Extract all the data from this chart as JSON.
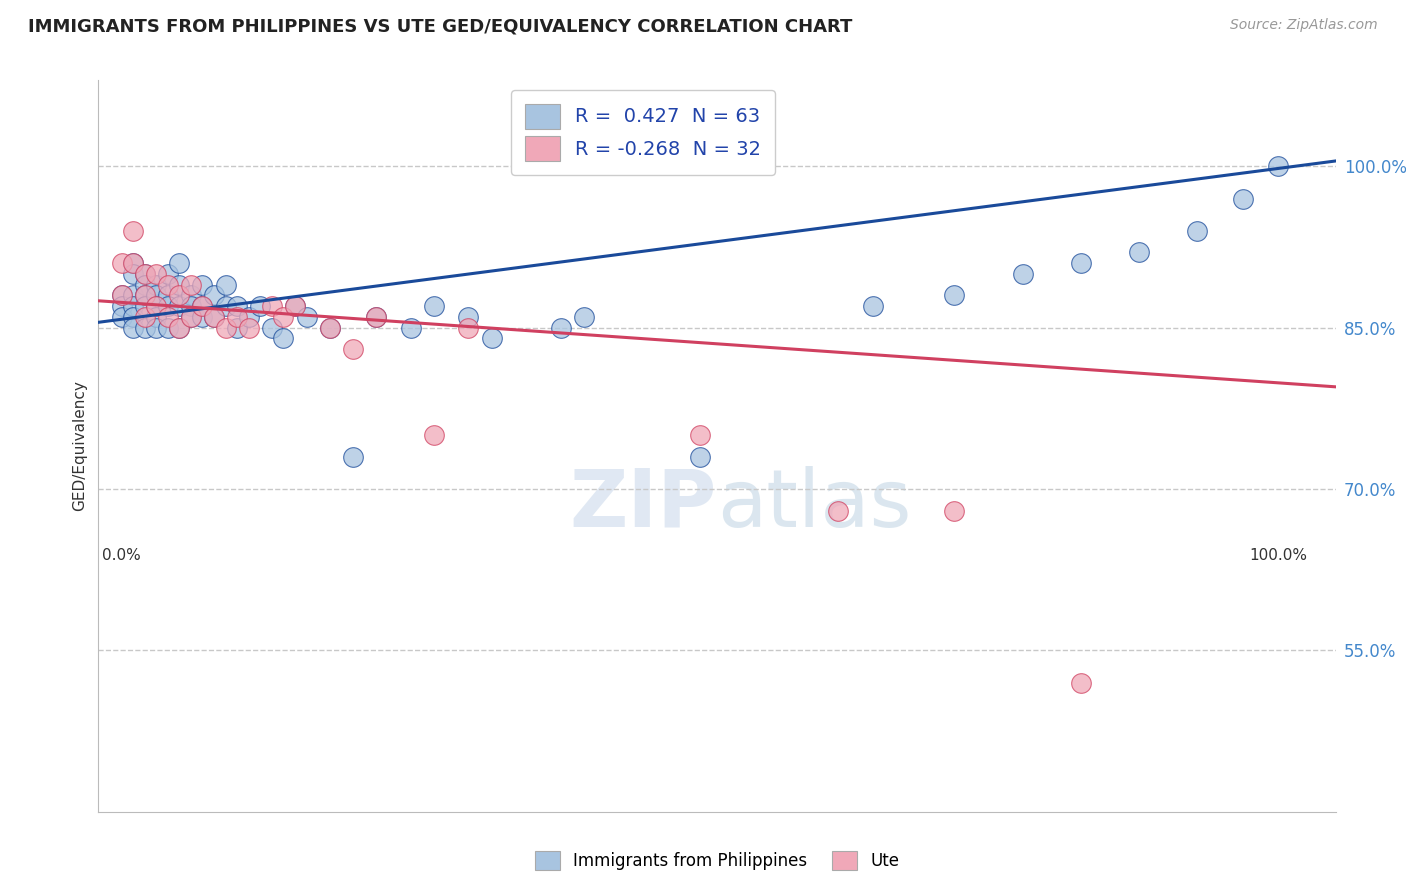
{
  "title": "IMMIGRANTS FROM PHILIPPINES VS UTE GED/EQUIVALENCY CORRELATION CHART",
  "source": "Source: ZipAtlas.com",
  "ylabel": "GED/Equivalency",
  "watermark_zip": "ZIP",
  "watermark_atlas": "atlas",
  "blue_R": 0.427,
  "blue_N": 63,
  "pink_R": -0.268,
  "pink_N": 32,
  "blue_color": "#a8c4e0",
  "blue_line_color": "#1a4a9a",
  "pink_color": "#f0a8b8",
  "pink_line_color": "#d04060",
  "ytick_labels": [
    "100.0%",
    "85.0%",
    "70.0%",
    "55.0%"
  ],
  "ytick_values": [
    1.0,
    0.85,
    0.7,
    0.55
  ],
  "ylim_min": 0.4,
  "ylim_max": 1.08,
  "xlim_min": -0.02,
  "xlim_max": 1.05,
  "blue_scatter_x": [
    0.0,
    0.0,
    0.0,
    0.01,
    0.01,
    0.01,
    0.01,
    0.01,
    0.01,
    0.02,
    0.02,
    0.02,
    0.02,
    0.02,
    0.03,
    0.03,
    0.03,
    0.03,
    0.03,
    0.04,
    0.04,
    0.04,
    0.04,
    0.05,
    0.05,
    0.05,
    0.05,
    0.06,
    0.06,
    0.06,
    0.07,
    0.07,
    0.07,
    0.08,
    0.08,
    0.09,
    0.09,
    0.1,
    0.1,
    0.11,
    0.12,
    0.13,
    0.14,
    0.15,
    0.16,
    0.18,
    0.2,
    0.22,
    0.25,
    0.27,
    0.3,
    0.32,
    0.38,
    0.4,
    0.5,
    0.65,
    0.72,
    0.78,
    0.83,
    0.88,
    0.93,
    0.97,
    1.0
  ],
  "blue_scatter_y": [
    0.88,
    0.87,
    0.86,
    0.91,
    0.9,
    0.88,
    0.87,
    0.86,
    0.85,
    0.9,
    0.89,
    0.88,
    0.87,
    0.85,
    0.89,
    0.88,
    0.87,
    0.86,
    0.85,
    0.9,
    0.88,
    0.87,
    0.85,
    0.91,
    0.89,
    0.87,
    0.85,
    0.88,
    0.87,
    0.86,
    0.89,
    0.87,
    0.86,
    0.88,
    0.86,
    0.89,
    0.87,
    0.87,
    0.85,
    0.86,
    0.87,
    0.85,
    0.84,
    0.87,
    0.86,
    0.85,
    0.73,
    0.86,
    0.85,
    0.87,
    0.86,
    0.84,
    0.85,
    0.86,
    0.73,
    0.87,
    0.88,
    0.9,
    0.91,
    0.92,
    0.94,
    0.97,
    1.0
  ],
  "pink_scatter_x": [
    0.0,
    0.0,
    0.01,
    0.01,
    0.02,
    0.02,
    0.02,
    0.03,
    0.03,
    0.04,
    0.04,
    0.05,
    0.05,
    0.06,
    0.06,
    0.07,
    0.08,
    0.09,
    0.1,
    0.11,
    0.13,
    0.14,
    0.15,
    0.18,
    0.2,
    0.22,
    0.27,
    0.3,
    0.5,
    0.62,
    0.72,
    0.83
  ],
  "pink_scatter_y": [
    0.91,
    0.88,
    0.94,
    0.91,
    0.9,
    0.88,
    0.86,
    0.9,
    0.87,
    0.89,
    0.86,
    0.88,
    0.85,
    0.89,
    0.86,
    0.87,
    0.86,
    0.85,
    0.86,
    0.85,
    0.87,
    0.86,
    0.87,
    0.85,
    0.83,
    0.86,
    0.75,
    0.85,
    0.75,
    0.68,
    0.68,
    0.52
  ],
  "legend_label_blue": "Immigrants from Philippines",
  "legend_label_pink": "Ute",
  "grid_color": "#c8c8c8",
  "background_color": "#ffffff",
  "title_fontsize": 13,
  "source_fontsize": 10,
  "axis_label_fontsize": 11,
  "legend_fontsize": 14,
  "tick_label_color": "#4488cc"
}
